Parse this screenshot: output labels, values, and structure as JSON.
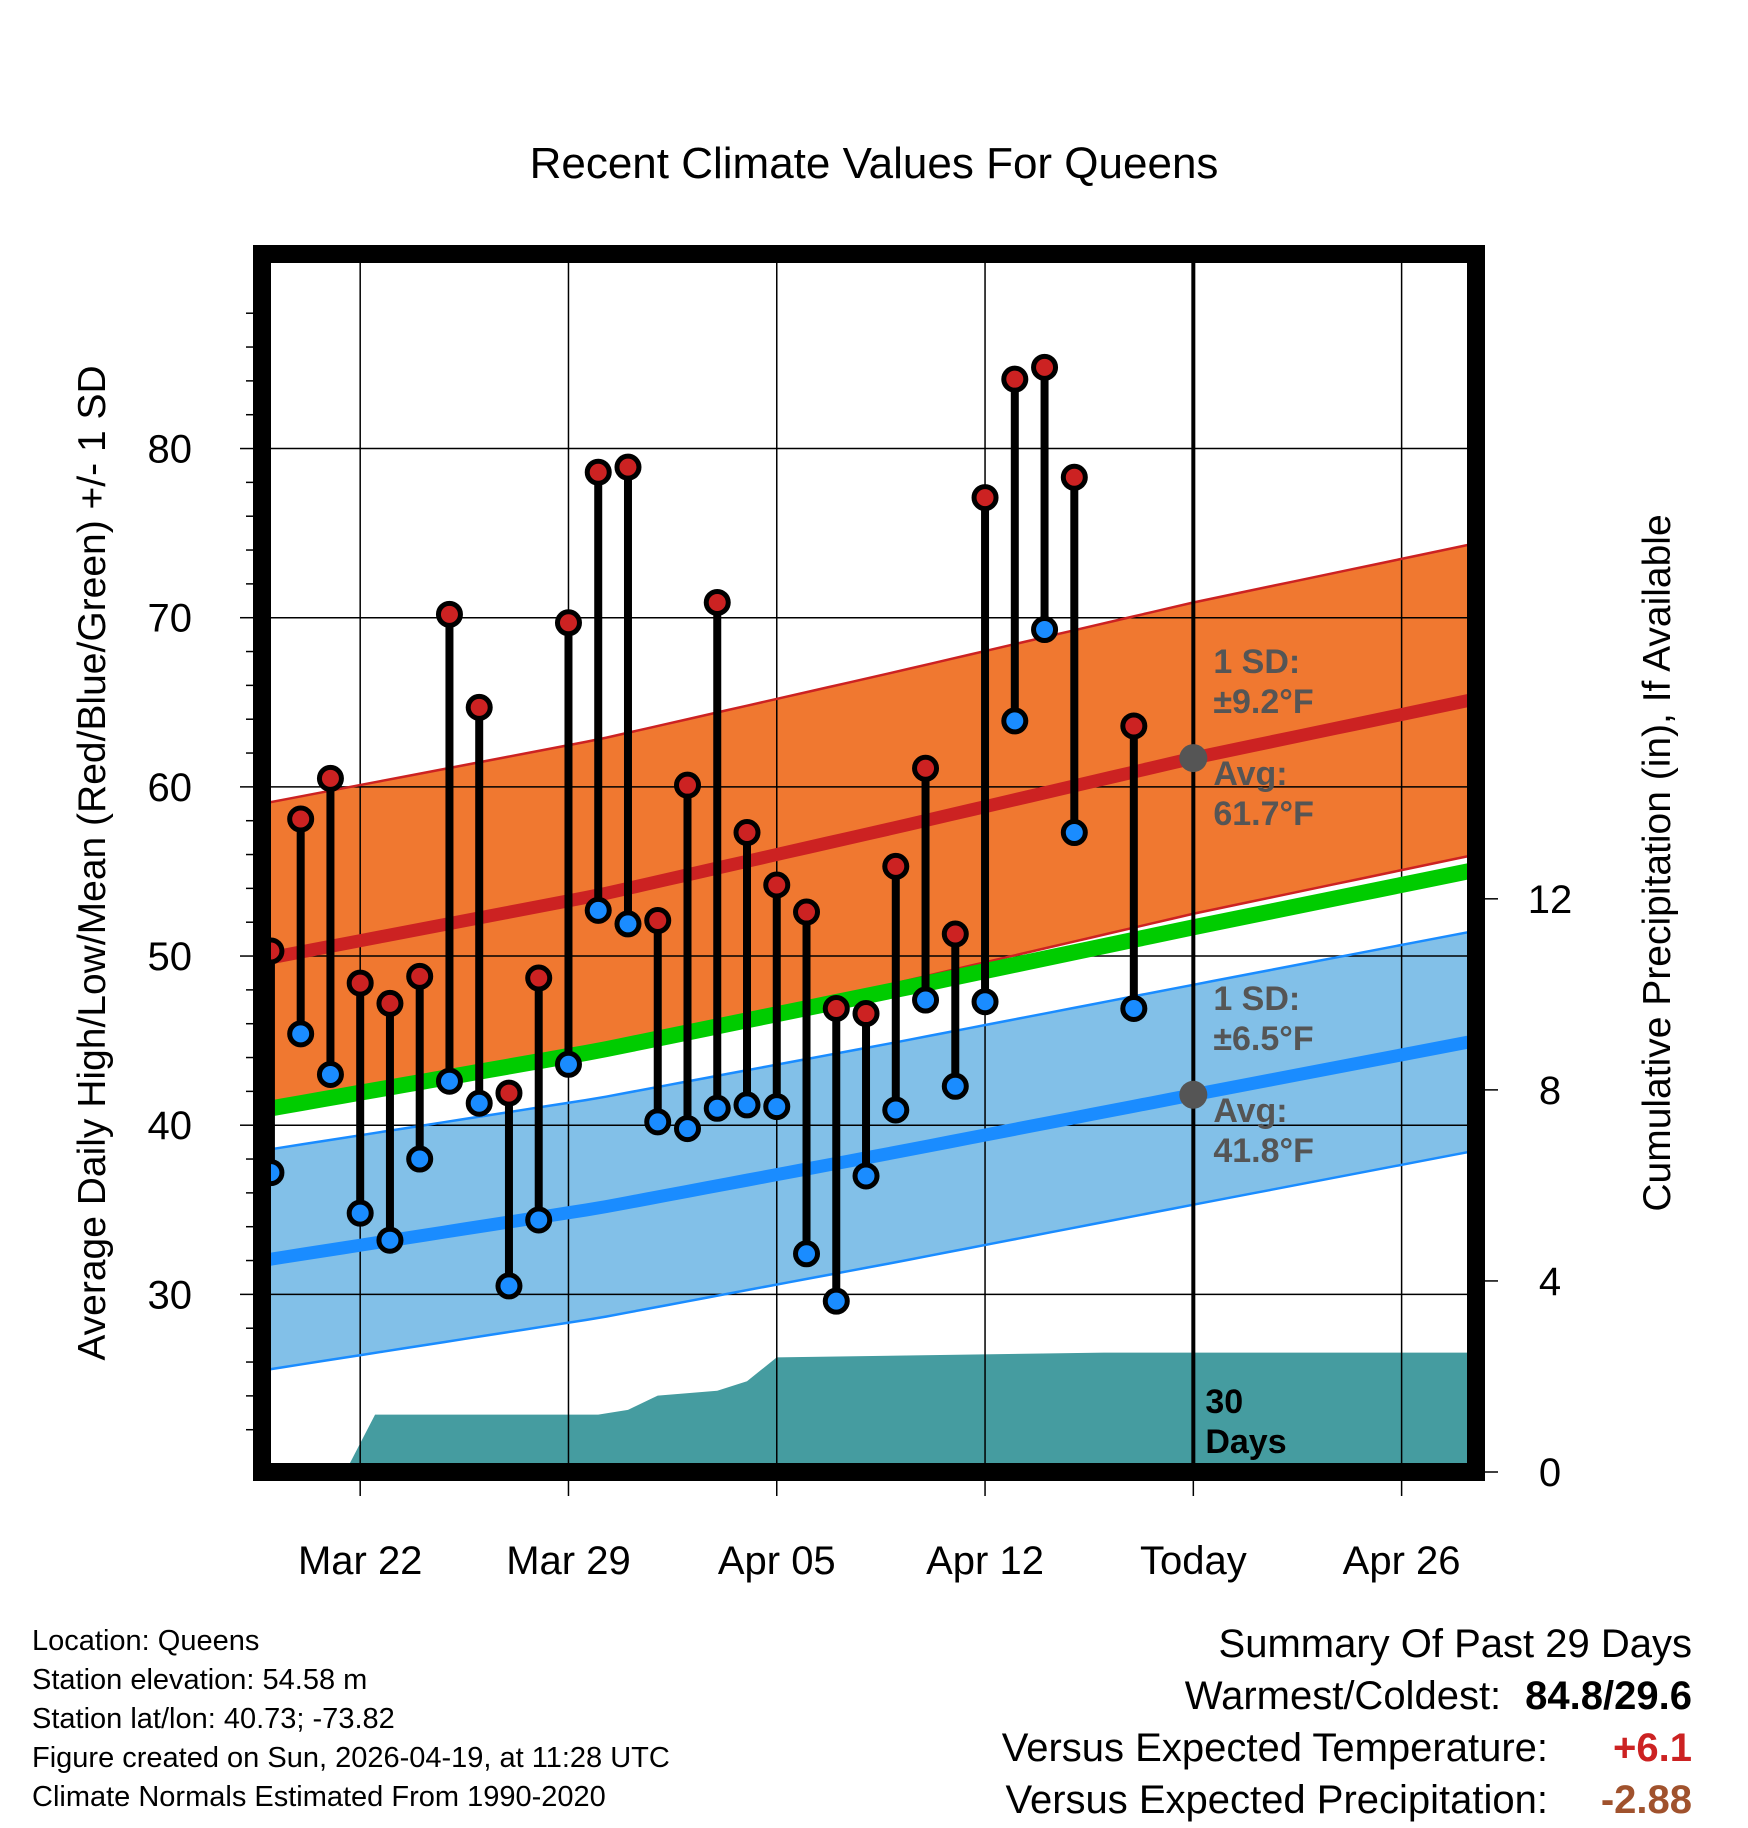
{
  "chart_data": {
    "type": "line",
    "title": "Recent Climate Values For Queens",
    "xlabel": "Day",
    "ylabel": "Average Daily High/Low/Mean (Red/Blue/Green) +/- 1 SD",
    "ylabel_right": "Cumulative Precipitation (in), If Available",
    "x_tick_labels": [
      "Mar 22",
      "Mar 29",
      "Apr 05",
      "Apr 12",
      "Today",
      "Apr 26"
    ],
    "x_tick_days": [
      2,
      9,
      16,
      23,
      30,
      37
    ],
    "xlim": [
      -1.3,
      39.5
    ],
    "ylim": [
      19.5,
      91.5
    ],
    "y_ticks": [
      30,
      40,
      50,
      60,
      70,
      80
    ],
    "y_ticks_right": [
      0,
      4,
      8,
      12
    ],
    "ylim_right": [
      0,
      25.5
    ],
    "today_day": 30,
    "observed_days": [
      -1,
      0,
      1,
      2,
      3,
      4,
      5,
      6,
      7,
      8,
      9,
      10,
      11,
      12,
      13,
      14,
      15,
      16,
      17,
      18,
      19,
      20,
      21,
      22,
      23,
      24,
      25,
      26,
      28,
      29
    ],
    "observed_high": [
      50.3,
      58.1,
      60.5,
      48.4,
      47.2,
      48.8,
      70.2,
      64.7,
      41.9,
      48.7,
      69.7,
      78.6,
      78.9,
      52.1,
      60.1,
      70.9,
      57.3,
      54.2,
      52.6,
      46.9,
      46.6,
      55.3,
      61.1,
      51.3,
      77.1,
      84.1,
      84.8,
      78.3,
      63.6
    ],
    "observed_low": [
      37.2,
      45.4,
      43.0,
      34.8,
      33.2,
      38.0,
      42.6,
      41.3,
      30.5,
      34.4,
      43.6,
      52.7,
      51.9,
      40.2,
      39.8,
      41.0,
      41.2,
      41.1,
      32.4,
      29.6,
      37.0,
      40.9,
      47.4,
      42.3,
      47.3,
      63.9,
      69.3,
      57.3,
      46.9
    ],
    "normal_days": [
      -1.3,
      10,
      20,
      30,
      39.5
    ],
    "normal_high_avg": [
      49.8,
      53.6,
      57.6,
      61.7,
      65.2
    ],
    "normal_high_sd": 9.2,
    "normal_low_avg": [
      32.0,
      35.1,
      38.4,
      41.8,
      45.0
    ],
    "normal_low_sd": 6.5,
    "normal_mean_avg": [
      40.9,
      44.4,
      48.0,
      51.7,
      55.1
    ],
    "precip_days": [
      1.5,
      2.5,
      10,
      11,
      12,
      14,
      15,
      16,
      27,
      39.5
    ],
    "precip_cumulative": [
      0,
      1.2,
      1.2,
      1.3,
      1.6,
      1.7,
      1.9,
      2.4,
      2.5,
      2.5
    ],
    "annotations": {
      "high_sd_line1": "1 SD:",
      "high_sd_line2": "±9.2°F",
      "high_avg_line1": "Avg:",
      "high_avg_line2": "61.7°F",
      "low_sd_line1": "1 SD:",
      "low_sd_line2": "±6.5°F",
      "low_avg_line1": "Avg:",
      "low_avg_line2": "41.8°F",
      "days_line1": "30",
      "days_line2": "Days"
    },
    "colors": {
      "high_band": "#f07830",
      "high_line": "#cc2222",
      "low_band": "#82c0e8",
      "low_line": "#1a8cff",
      "mean_line": "#00cc00",
      "precip": "#459ca0",
      "high_dot": "#cc2222",
      "low_dot": "#1a8cff",
      "annotation": "#555555"
    }
  },
  "footer": {
    "location": "Location: Queens",
    "elevation": "Station elevation: 54.58 m",
    "latlon": "Station lat/lon: 40.73; -73.82",
    "created": "Figure created on Sun, 2026-04-19, at 11:28 UTC",
    "normals": "Climate Normals Estimated From 1990-2020"
  },
  "summary": {
    "heading": "Summary Of Past 29 Days",
    "warmest_coldest_label": "Warmest/Coldest:",
    "warmest_coldest_value": "84.8/29.6",
    "temp_label": "Versus Expected Temperature:",
    "temp_value": "+6.1",
    "temp_color": "#cc2222",
    "precip_label": "Versus Expected Precipitation:",
    "precip_value": "-2.88",
    "precip_color": "#a0522d"
  }
}
